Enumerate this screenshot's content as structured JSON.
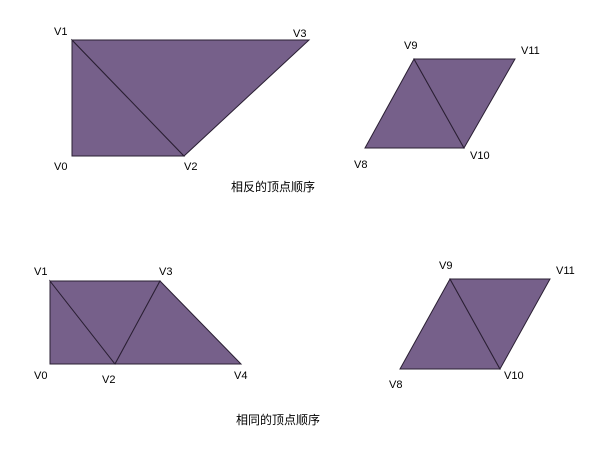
{
  "groups": [
    {
      "caption": "相反的顶点顺序",
      "shapes": [
        {
          "vertices": [
            "V0",
            "V1",
            "V2",
            "V3"
          ]
        },
        {
          "vertices": [
            "V8",
            "V9",
            "V10",
            "V11"
          ]
        }
      ]
    },
    {
      "caption": "相同的顶点顺序",
      "shapes": [
        {
          "vertices": [
            "V0",
            "V1",
            "V2",
            "V3",
            "V4"
          ]
        },
        {
          "vertices": [
            "V8",
            "V9",
            "V10",
            "V11"
          ]
        }
      ]
    }
  ],
  "colors": {
    "fill": "#76608a",
    "stroke": "#2a1f33"
  }
}
